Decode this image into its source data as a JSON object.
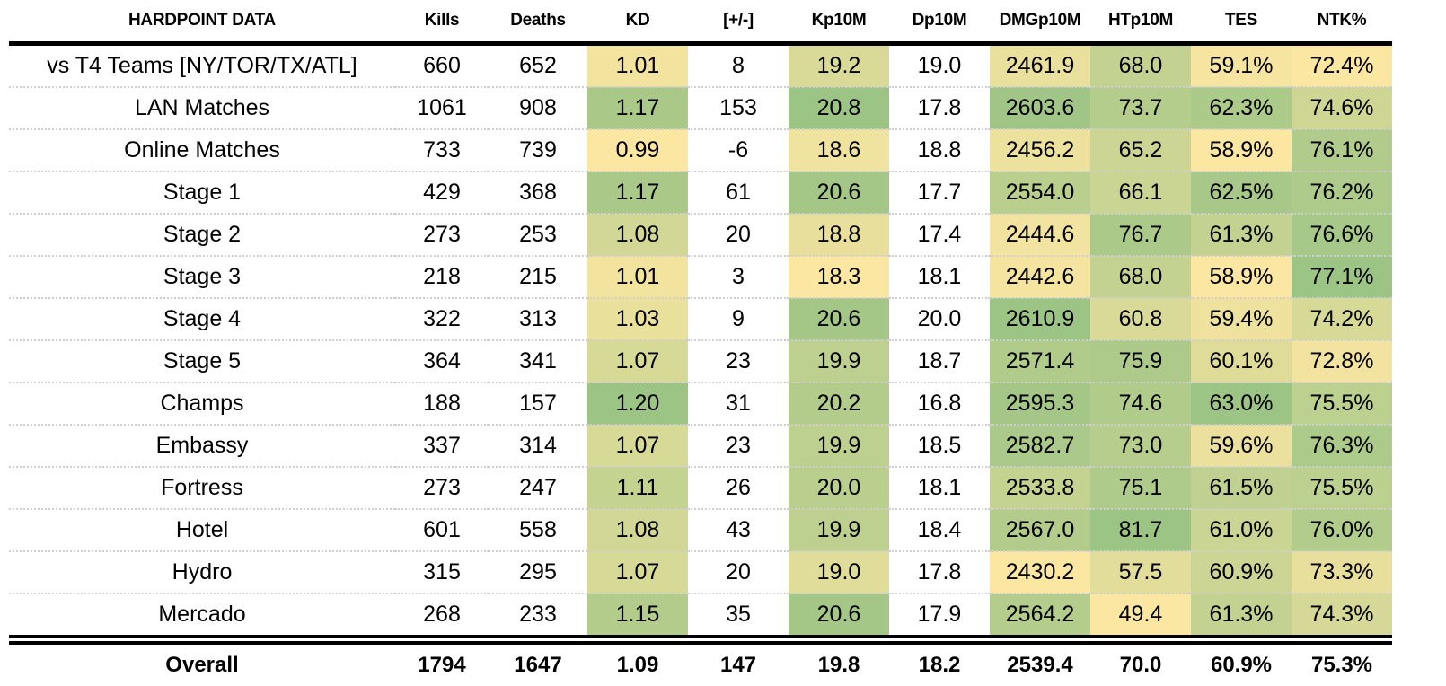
{
  "chart_data": {
    "type": "table",
    "title": "HARDPOINT DATA",
    "columns": [
      "HARDPOINT DATA",
      "Kills",
      "Deaths",
      "KD",
      "[+/-]",
      "Kp10M",
      "Dp10M",
      "DMGp10M",
      "HTp10M",
      "TES",
      "NTK%"
    ],
    "heatmap_columns": [
      3,
      5,
      7,
      8,
      9,
      10
    ],
    "colors": {
      "low": "#fbe6a2",
      "high": "#9cc485"
    },
    "rows": [
      [
        "vs T4 Teams [NY/TOR/TX/ATL]",
        "660",
        "652",
        "1.01",
        "8",
        "19.2",
        "19.0",
        "2461.9",
        "68.0",
        "59.1%",
        "72.4%"
      ],
      [
        "LAN Matches",
        "1061",
        "908",
        "1.17",
        "153",
        "20.8",
        "17.8",
        "2603.6",
        "73.7",
        "62.3%",
        "74.6%"
      ],
      [
        "Online Matches",
        "733",
        "739",
        "0.99",
        "-6",
        "18.6",
        "18.8",
        "2456.2",
        "65.2",
        "58.9%",
        "76.1%"
      ],
      [
        "Stage 1",
        "429",
        "368",
        "1.17",
        "61",
        "20.6",
        "17.7",
        "2554.0",
        "66.1",
        "62.5%",
        "76.2%"
      ],
      [
        "Stage 2",
        "273",
        "253",
        "1.08",
        "20",
        "18.8",
        "17.4",
        "2444.6",
        "76.7",
        "61.3%",
        "76.6%"
      ],
      [
        "Stage 3",
        "218",
        "215",
        "1.01",
        "3",
        "18.3",
        "18.1",
        "2442.6",
        "68.0",
        "58.9%",
        "77.1%"
      ],
      [
        "Stage 4",
        "322",
        "313",
        "1.03",
        "9",
        "20.6",
        "20.0",
        "2610.9",
        "60.8",
        "59.4%",
        "74.2%"
      ],
      [
        "Stage 5",
        "364",
        "341",
        "1.07",
        "23",
        "19.9",
        "18.7",
        "2571.4",
        "75.9",
        "60.1%",
        "72.8%"
      ],
      [
        "Champs",
        "188",
        "157",
        "1.20",
        "31",
        "20.2",
        "16.8",
        "2595.3",
        "74.6",
        "63.0%",
        "75.5%"
      ],
      [
        "Embassy",
        "337",
        "314",
        "1.07",
        "23",
        "19.9",
        "18.5",
        "2582.7",
        "73.0",
        "59.6%",
        "76.3%"
      ],
      [
        "Fortress",
        "273",
        "247",
        "1.11",
        "26",
        "20.0",
        "18.1",
        "2533.8",
        "75.1",
        "61.5%",
        "75.5%"
      ],
      [
        "Hotel",
        "601",
        "558",
        "1.08",
        "43",
        "19.9",
        "18.4",
        "2567.0",
        "81.7",
        "61.0%",
        "76.0%"
      ],
      [
        "Hydro",
        "315",
        "295",
        "1.07",
        "20",
        "19.0",
        "17.8",
        "2430.2",
        "57.5",
        "60.9%",
        "73.3%"
      ],
      [
        "Mercado",
        "268",
        "233",
        "1.15",
        "35",
        "20.6",
        "17.9",
        "2564.2",
        "49.4",
        "61.3%",
        "74.3%"
      ]
    ],
    "overall": [
      "Overall",
      "1794",
      "1647",
      "1.09",
      "147",
      "19.8",
      "18.2",
      "2539.4",
      "70.0",
      "60.9%",
      "75.3%"
    ]
  }
}
